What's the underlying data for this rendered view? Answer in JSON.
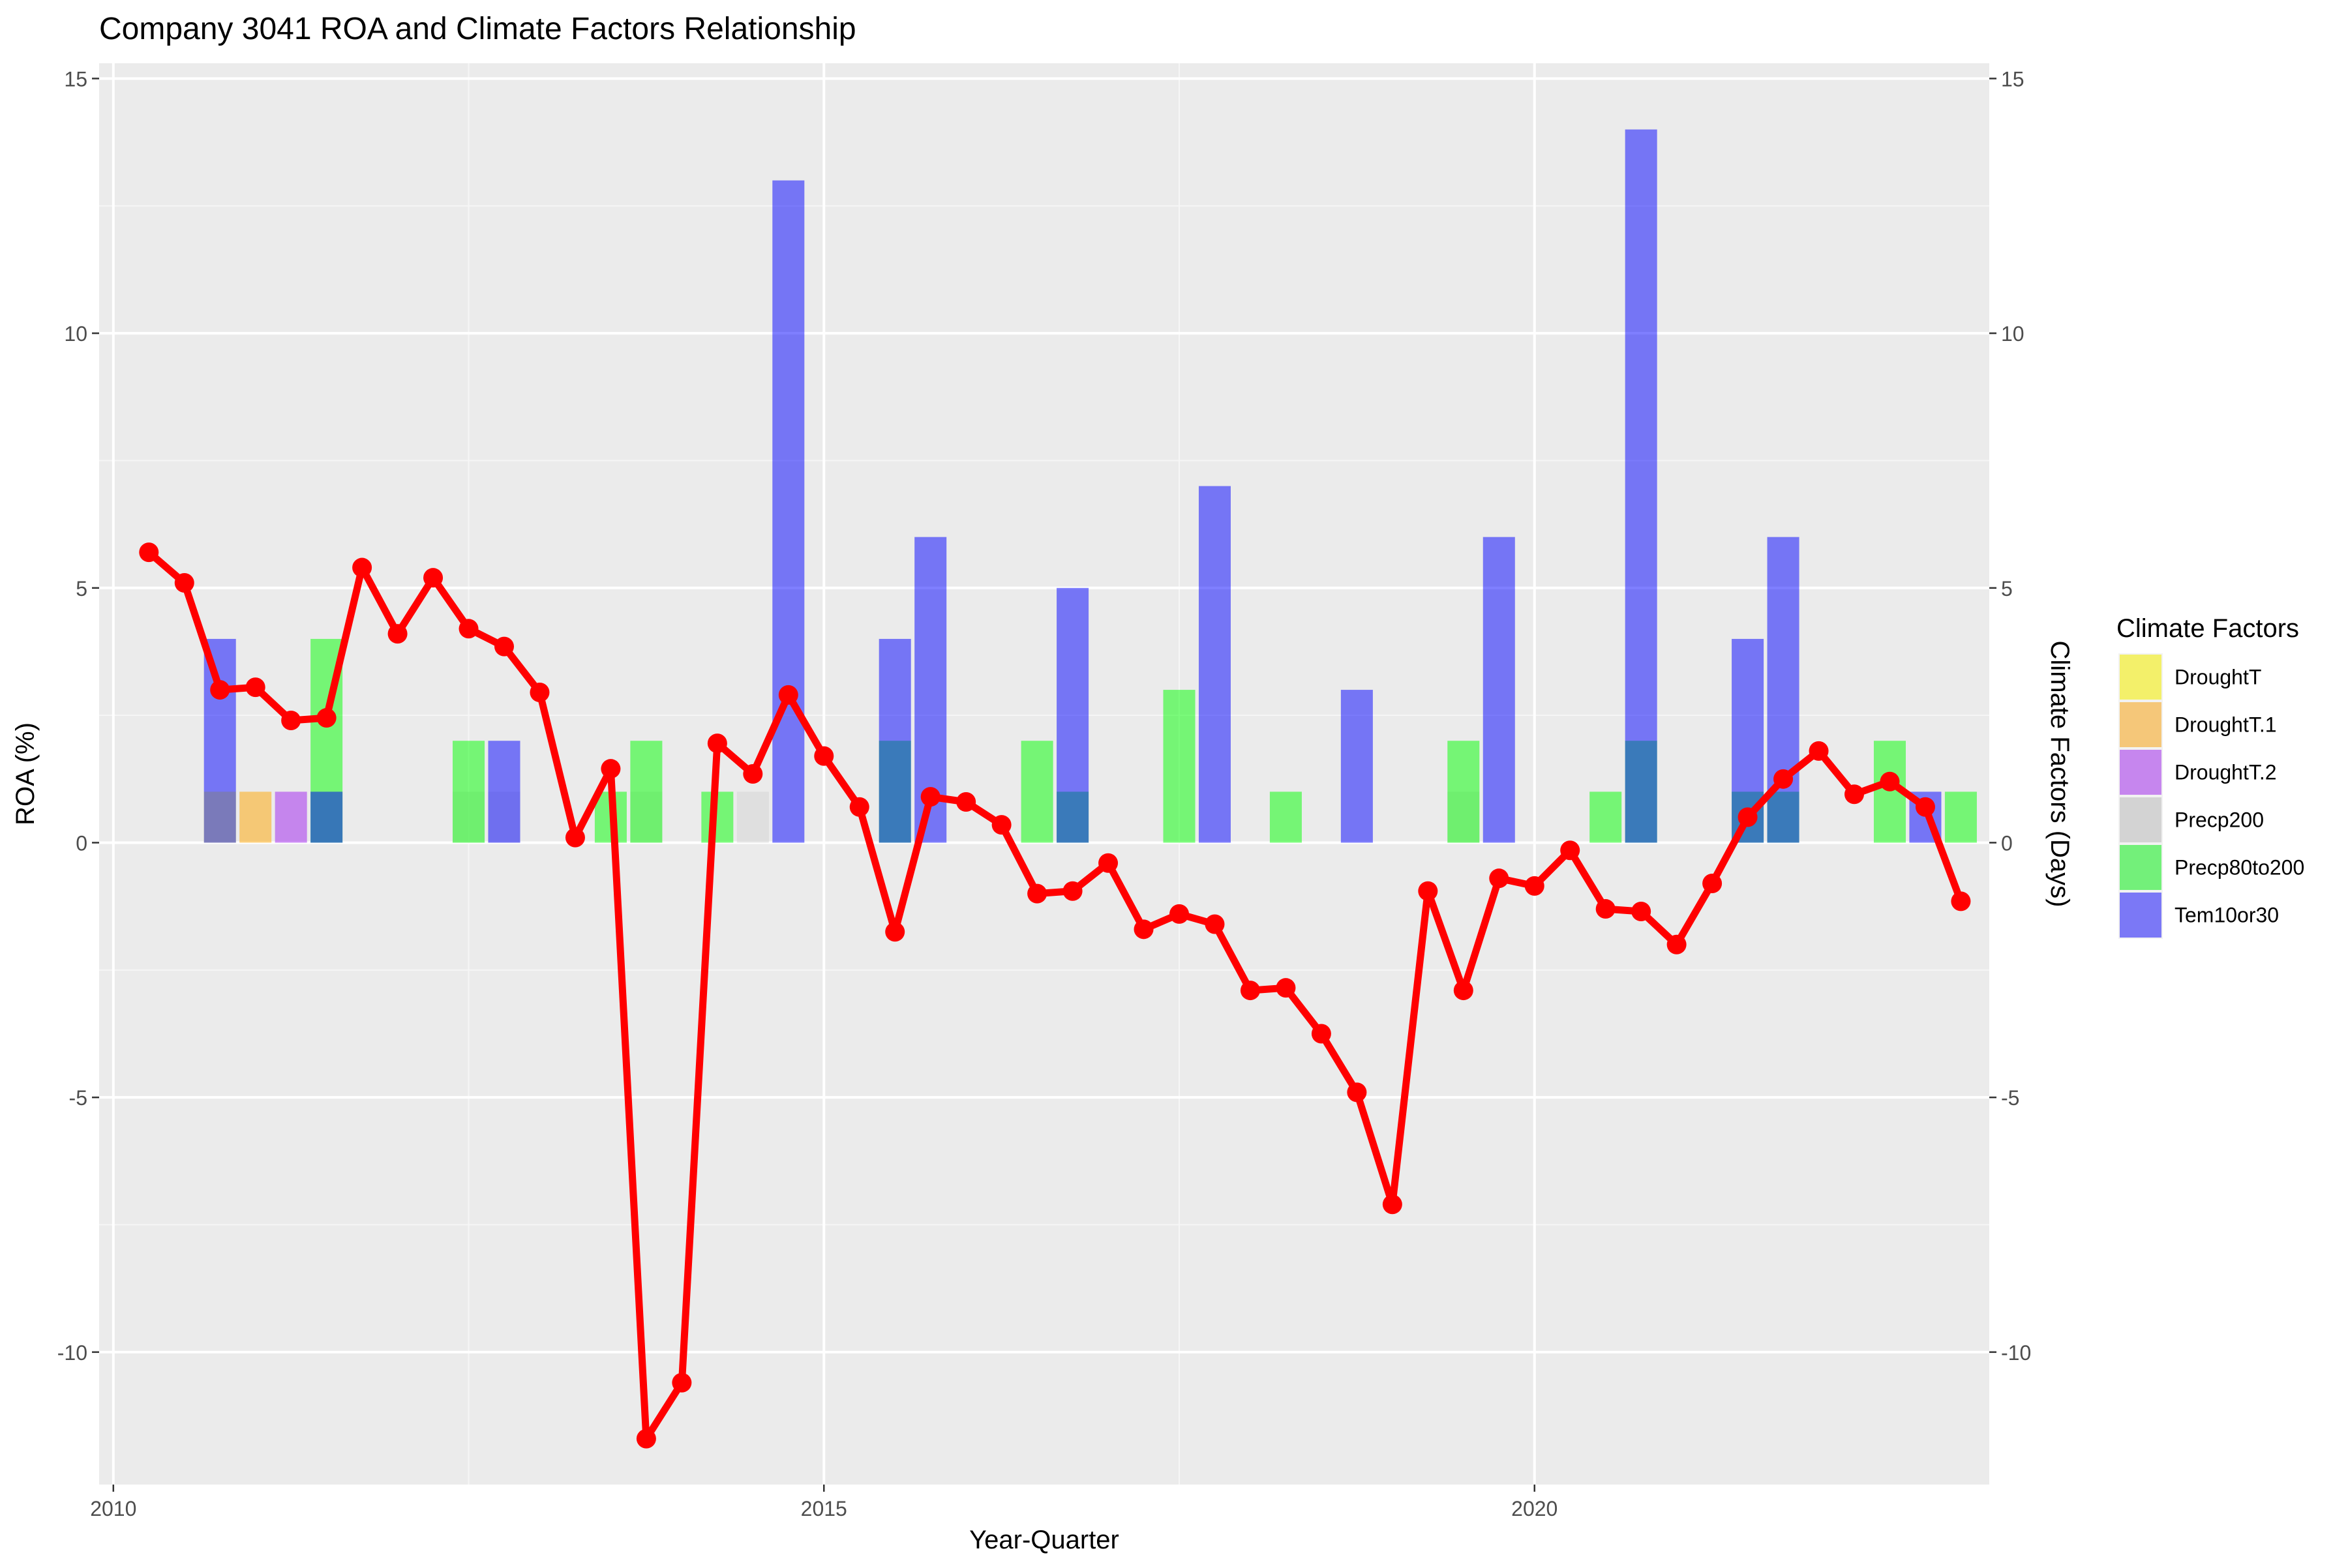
{
  "chart_data": {
    "type": "bar",
    "title": "Company 3041 ROA and Climate Factors Relationship",
    "xlabel": "Year-Quarter",
    "ylabel": "ROA (%)",
    "y2label": "Climate Factors (Days)",
    "xlim": [
      2009.9,
      2023.2
    ],
    "ylim": [
      -12.6,
      15.3
    ],
    "x_ticks": [
      2010,
      2015,
      2020
    ],
    "y_ticks": [
      -10,
      -5,
      0,
      5,
      10,
      15
    ],
    "y_tick_labels": [
      "-10",
      "-5",
      "0",
      "5",
      "10",
      "15"
    ],
    "grid": true,
    "legend": {
      "title": "Climate Factors",
      "position": "right",
      "items": [
        {
          "name": "DroughtT",
          "color": "#f3f06a"
        },
        {
          "name": "DroughtT.1",
          "color": "#f5c779"
        },
        {
          "name": "DroughtT.2",
          "color": "#c686ee"
        },
        {
          "name": "Precp200",
          "color": "#d3d3d3"
        },
        {
          "name": "Precp80to200",
          "color": "#73f07a"
        },
        {
          "name": "Tem10or30",
          "color": "#7b78f6"
        }
      ]
    },
    "bar_series": [
      {
        "name": "DroughtT",
        "color": "#ffff00",
        "points": [
          {
            "x": 2010.75,
            "y": 1
          }
        ]
      },
      {
        "name": "DroughtT.1",
        "color": "#ffa500",
        "points": [
          {
            "x": 2011.0,
            "y": 1
          }
        ]
      },
      {
        "name": "DroughtT.2",
        "color": "#a020f0",
        "points": [
          {
            "x": 2011.25,
            "y": 1
          }
        ]
      },
      {
        "name": "Precp200",
        "color": "#d3d3d3",
        "points": [
          {
            "x": 2011.5,
            "y": 1
          },
          {
            "x": 2012.5,
            "y": 1
          },
          {
            "x": 2012.75,
            "y": 1
          },
          {
            "x": 2013.75,
            "y": 1
          },
          {
            "x": 2014.5,
            "y": 1
          },
          {
            "x": 2019.5,
            "y": 1
          }
        ]
      },
      {
        "name": "Precp80to200",
        "color": "#00ff00",
        "points": [
          {
            "x": 2011.5,
            "y": 4
          },
          {
            "x": 2012.5,
            "y": 2
          },
          {
            "x": 2013.5,
            "y": 1
          },
          {
            "x": 2013.75,
            "y": 2
          },
          {
            "x": 2014.25,
            "y": 1
          },
          {
            "x": 2015.5,
            "y": 2
          },
          {
            "x": 2016.5,
            "y": 2
          },
          {
            "x": 2016.75,
            "y": 1
          },
          {
            "x": 2017.5,
            "y": 3
          },
          {
            "x": 2018.25,
            "y": 1
          },
          {
            "x": 2019.5,
            "y": 2
          },
          {
            "x": 2020.5,
            "y": 1
          },
          {
            "x": 2020.75,
            "y": 2
          },
          {
            "x": 2021.5,
            "y": 1
          },
          {
            "x": 2021.75,
            "y": 1
          },
          {
            "x": 2022.5,
            "y": 2
          },
          {
            "x": 2023.0,
            "y": 1
          }
        ]
      },
      {
        "name": "Tem10or30",
        "color": "#0000ff",
        "points": [
          {
            "x": 2010.75,
            "y": 4
          },
          {
            "x": 2011.5,
            "y": 1
          },
          {
            "x": 2012.75,
            "y": 2
          },
          {
            "x": 2014.75,
            "y": 13
          },
          {
            "x": 2015.5,
            "y": 4
          },
          {
            "x": 2015.75,
            "y": 6
          },
          {
            "x": 2016.75,
            "y": 5
          },
          {
            "x": 2017.75,
            "y": 7
          },
          {
            "x": 2018.75,
            "y": 3
          },
          {
            "x": 2019.75,
            "y": 6
          },
          {
            "x": 2020.75,
            "y": 14
          },
          {
            "x": 2021.5,
            "y": 4
          },
          {
            "x": 2021.75,
            "y": 6
          },
          {
            "x": 2022.75,
            "y": 1
          }
        ]
      }
    ],
    "line_series": {
      "name": "ROA",
      "color": "#ff0000",
      "x": [
        2010.25,
        2010.5,
        2010.75,
        2011.0,
        2011.25,
        2011.5,
        2011.75,
        2012.0,
        2012.25,
        2012.5,
        2012.75,
        2013.0,
        2013.25,
        2013.5,
        2013.75,
        2014.0,
        2014.25,
        2014.5,
        2014.75,
        2015.0,
        2015.25,
        2015.5,
        2015.75,
        2016.0,
        2016.25,
        2016.5,
        2016.75,
        2017.0,
        2017.25,
        2017.5,
        2017.75,
        2018.0,
        2018.25,
        2018.5,
        2018.75,
        2019.0,
        2019.25,
        2019.5,
        2019.75,
        2020.0,
        2020.25,
        2020.5,
        2020.75,
        2021.0,
        2021.25,
        2021.5,
        2021.75,
        2022.0,
        2022.25,
        2022.5,
        2022.75,
        2023.0
      ],
      "y": [
        5.7,
        5.1,
        3.0,
        3.05,
        2.4,
        2.45,
        5.4,
        4.1,
        5.2,
        4.2,
        3.85,
        2.95,
        0.1,
        1.45,
        -11.7,
        -10.6,
        1.95,
        1.35,
        2.9,
        1.7,
        0.7,
        -1.75,
        0.9,
        0.8,
        0.35,
        -1.0,
        -0.95,
        -0.4,
        -1.7,
        -1.4,
        -1.6,
        -2.9,
        -2.85,
        -3.75,
        -4.9,
        -7.1,
        -0.95,
        -2.9,
        -0.7,
        -0.85,
        -0.15,
        -1.3,
        -1.35,
        -2.0,
        -0.8,
        0.5,
        1.25,
        1.8,
        0.95,
        1.2,
        0.7,
        -1.15
      ]
    }
  }
}
